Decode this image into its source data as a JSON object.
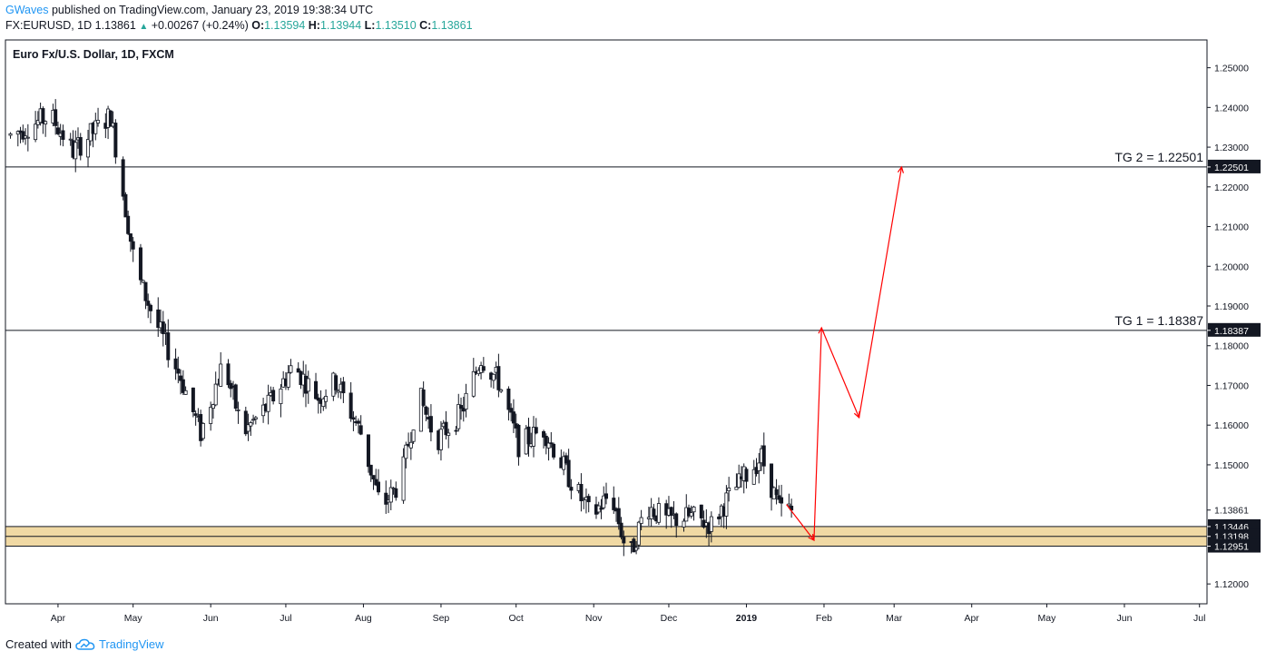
{
  "header": {
    "author": "GWaves",
    "published_text": "published on TradingView.com, January 23, 2019 19:38:34 UTC",
    "symbol": "FX:EURUSD, 1D",
    "last": "1.13861",
    "change": "+0.00267 (+0.24%)",
    "o_label": "O:",
    "o_value": "1.13594",
    "h_label": "H:",
    "h_value": "1.13944",
    "l_label": "L:",
    "l_value": "1.13510",
    "c_label": "C:",
    "c_value": "1.13861"
  },
  "legend": {
    "title": "Euro Fx/U.S. Dollar, 1D, FXCM"
  },
  "footer": {
    "created_with": "Created with",
    "brand": "TradingView"
  },
  "colors": {
    "zone_fill": "#f0d9a4",
    "projection": "#ff0000",
    "candle_up": "#ffffff",
    "candle_down": "#131722",
    "brand": "#2196f3"
  },
  "chart_data": {
    "type": "candlestick",
    "title": "Euro Fx/U.S. Dollar, 1D, FXCM",
    "xlabel": "",
    "ylabel": "",
    "ylim": [
      1.115,
      1.257
    ],
    "y_ticks": [
      1.25,
      1.24,
      1.23,
      1.22,
      1.21,
      1.2,
      1.19,
      1.18,
      1.17,
      1.16,
      1.15,
      1.12
    ],
    "y_tick_labels": [
      "1.25000",
      "1.24000",
      "1.23000",
      "1.22000",
      "1.21000",
      "1.20000",
      "1.19000",
      "1.18000",
      "1.17000",
      "1.16000",
      "1.15000",
      "1.12000"
    ],
    "x_month_ticks": [
      {
        "label": "Apr",
        "day": 9
      },
      {
        "label": "May",
        "day": 39
      },
      {
        "label": "Jun",
        "day": 70
      },
      {
        "label": "Jul",
        "day": 100
      },
      {
        "label": "Aug",
        "day": 131
      },
      {
        "label": "Sep",
        "day": 162
      },
      {
        "label": "Oct",
        "day": 192
      },
      {
        "label": "Nov",
        "day": 223
      },
      {
        "label": "Dec",
        "day": 253
      },
      {
        "label": "2019",
        "day": 284,
        "bold": true
      },
      {
        "label": "Feb",
        "day": 315
      },
      {
        "label": "Mar",
        "day": 343
      },
      {
        "label": "Apr",
        "day": 374
      },
      {
        "label": "May",
        "day": 404
      },
      {
        "label": "Jun",
        "day": 435
      },
      {
        "label": "Jul",
        "day": 465
      }
    ],
    "x_day_range": [
      -12,
      468
    ],
    "price_path_keypoints": [
      {
        "day": -10,
        "price": 1.233
      },
      {
        "day": 6,
        "price": 1.238
      },
      {
        "day": 15,
        "price": 1.229
      },
      {
        "day": 30,
        "price": 1.238
      },
      {
        "day": 40,
        "price": 1.199
      },
      {
        "day": 48,
        "price": 1.186
      },
      {
        "day": 58,
        "price": 1.172
      },
      {
        "day": 66,
        "price": 1.158
      },
      {
        "day": 75,
        "price": 1.176
      },
      {
        "day": 83,
        "price": 1.158
      },
      {
        "day": 93,
        "price": 1.165
      },
      {
        "day": 103,
        "price": 1.175
      },
      {
        "day": 113,
        "price": 1.167
      },
      {
        "day": 120,
        "price": 1.171
      },
      {
        "day": 130,
        "price": 1.158
      },
      {
        "day": 138,
        "price": 1.139
      },
      {
        "day": 146,
        "price": 1.146
      },
      {
        "day": 153,
        "price": 1.168
      },
      {
        "day": 160,
        "price": 1.156
      },
      {
        "day": 170,
        "price": 1.163
      },
      {
        "day": 178,
        "price": 1.177
      },
      {
        "day": 185,
        "price": 1.171
      },
      {
        "day": 193,
        "price": 1.155
      },
      {
        "day": 203,
        "price": 1.159
      },
      {
        "day": 213,
        "price": 1.147
      },
      {
        "day": 222,
        "price": 1.137
      },
      {
        "day": 230,
        "price": 1.143
      },
      {
        "day": 237,
        "price": 1.126
      },
      {
        "day": 244,
        "price": 1.14
      },
      {
        "day": 252,
        "price": 1.136
      },
      {
        "day": 262,
        "price": 1.137
      },
      {
        "day": 270,
        "price": 1.135
      },
      {
        "day": 276,
        "price": 1.141
      },
      {
        "day": 282,
        "price": 1.146
      },
      {
        "day": 290,
        "price": 1.152
      },
      {
        "day": 297,
        "price": 1.139
      },
      {
        "day": 302,
        "price": 1.1386
      }
    ],
    "series": [
      {
        "name": "EURUSD daily candles (approximate, ~1y)",
        "last_close": 1.13861
      },
      {
        "name": "Projection path",
        "x": [
          300,
          311,
          314,
          329,
          346
        ],
        "values": [
          1.14,
          1.131,
          1.1845,
          1.1619,
          1.225
        ]
      }
    ],
    "horizontal_lines": [
      {
        "label": "TG 2 = 1.22501",
        "value": 1.22501
      },
      {
        "label": "TG 1 = 1.18387",
        "value": 1.18387
      }
    ],
    "support_zone": {
      "top": 1.13446,
      "mid": 1.13198,
      "bottom": 1.12951
    },
    "price_labels": [
      {
        "text": "1.22501",
        "value": 1.22501,
        "style": "dark"
      },
      {
        "text": "1.18387",
        "value": 1.18387,
        "style": "dark"
      },
      {
        "text": "1.13861",
        "value": 1.13861,
        "style": "light"
      },
      {
        "text": "1.13446",
        "value": 1.13446,
        "style": "dark"
      },
      {
        "text": "1.13198",
        "value": 1.13198,
        "style": "dark"
      },
      {
        "text": "1.12951",
        "value": 1.12951,
        "style": "dark"
      }
    ]
  }
}
